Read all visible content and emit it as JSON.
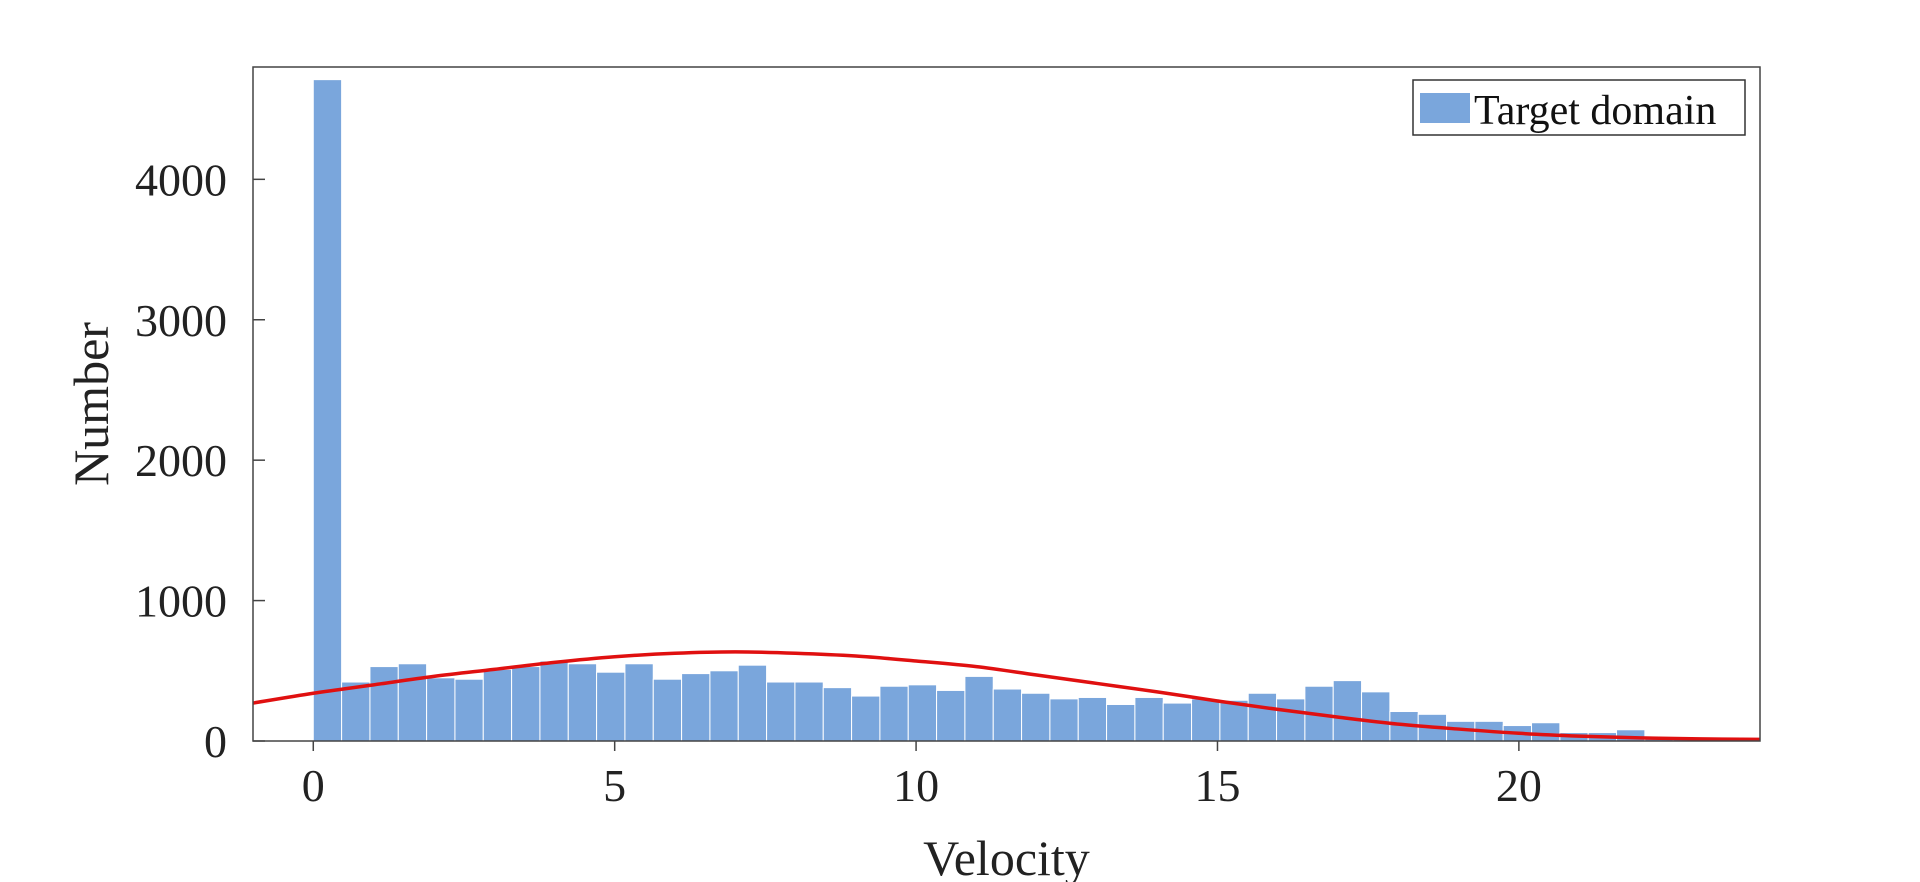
{
  "chart_data": {
    "type": "bar",
    "subtype": "histogram-with-fit-curve",
    "title": "",
    "xlabel": "Velocity",
    "ylabel": "Number",
    "xlim": [
      -1,
      24
    ],
    "ylim": [
      0,
      4800
    ],
    "xticks": [
      0,
      5,
      10,
      15,
      20
    ],
    "yticks": [
      0,
      1000,
      2000,
      3000,
      4000
    ],
    "grid": false,
    "legend": {
      "position": "top-right",
      "entries": [
        "Target domain"
      ]
    },
    "colors": {
      "bars": "#7aa6dc",
      "bar_edge": "#ffffff",
      "curve": "#e01010",
      "axes": "#444444"
    },
    "bin_width": 0.47,
    "bin_start": 0,
    "series": [
      {
        "name": "Target domain",
        "kind": "histogram",
        "values": [
          4710,
          420,
          530,
          550,
          450,
          440,
          510,
          530,
          570,
          550,
          490,
          550,
          440,
          480,
          500,
          540,
          420,
          420,
          380,
          320,
          390,
          400,
          360,
          460,
          370,
          340,
          300,
          310,
          260,
          310,
          270,
          300,
          290,
          340,
          300,
          390,
          430,
          350,
          210,
          190,
          140,
          140,
          110,
          130,
          60,
          60,
          80,
          30,
          20,
          15,
          10
        ]
      },
      {
        "kind": "fit-curve",
        "x": [
          -1,
          0,
          1,
          2,
          3,
          4,
          5,
          6,
          7,
          8,
          9,
          10,
          11,
          12,
          13,
          14,
          15,
          16,
          17,
          18,
          19,
          20,
          21,
          22,
          23,
          24
        ],
        "y": [
          270,
          340,
          400,
          460,
          510,
          560,
          600,
          625,
          635,
          625,
          605,
          570,
          530,
          470,
          410,
          350,
          285,
          225,
          170,
          120,
          85,
          55,
          35,
          22,
          15,
          12
        ]
      }
    ]
  }
}
